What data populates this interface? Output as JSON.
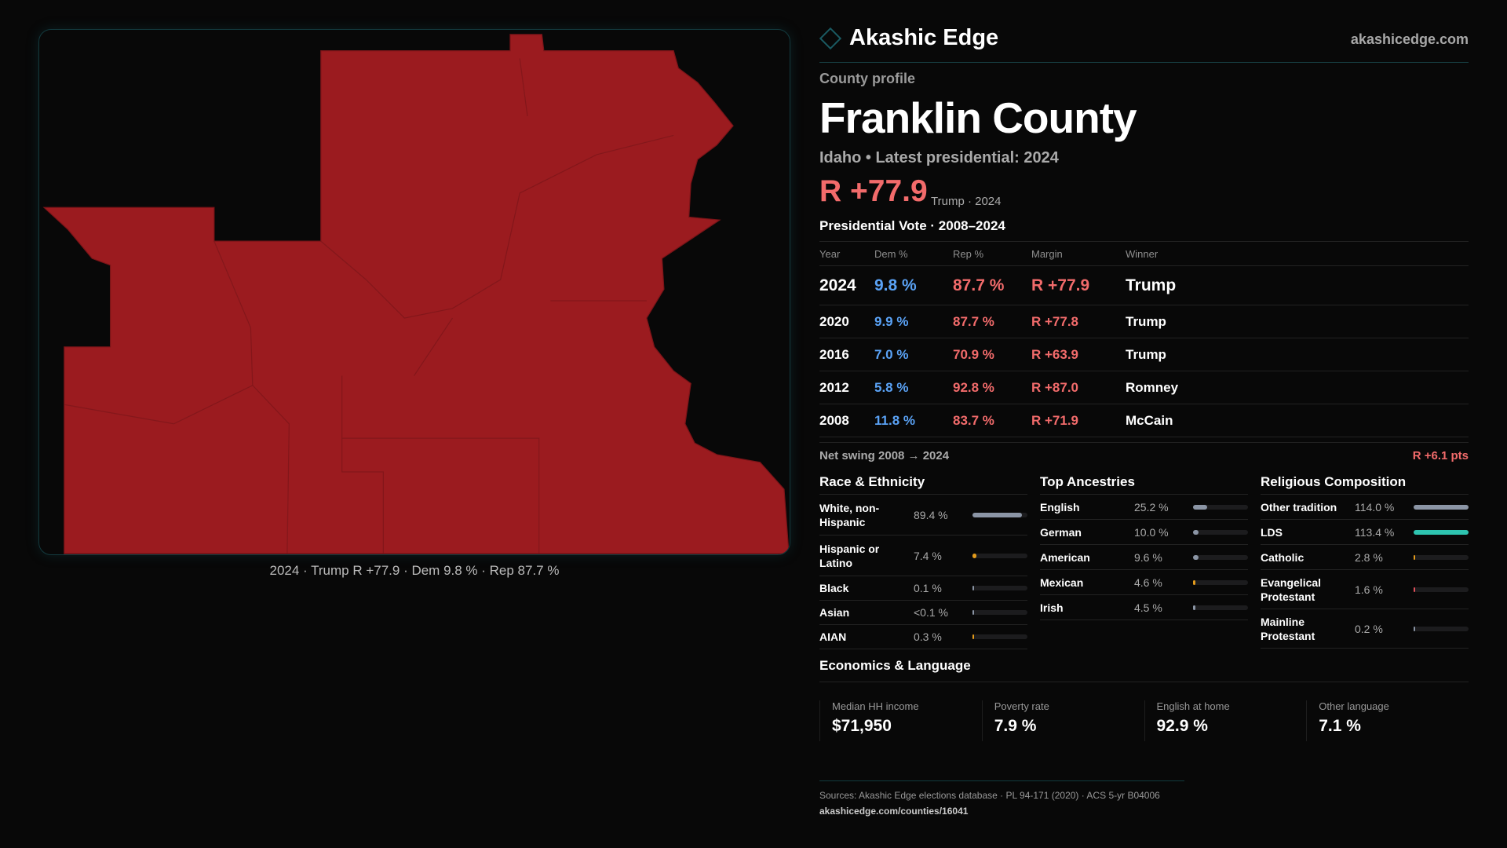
{
  "map": {
    "fill": "#9b1b1f",
    "caption": "2024 · Trump R +77.9 · Dem 9.8 % · Rep 87.7 %"
  },
  "header": {
    "brand": "Akashic Edge",
    "site": "akashicedge.com"
  },
  "profile": {
    "kicker": "County profile",
    "title": "Franklin County",
    "subtitle": "Idaho • Latest presidential: 2024",
    "margin": "R +77.9",
    "margin_sub": "Trump · 2024"
  },
  "votes": {
    "title": "Presidential Vote · 2008–2024",
    "headers": [
      "Year",
      "Dem %",
      "Rep %",
      "Margin",
      "Winner"
    ],
    "rows": [
      [
        "2024",
        "9.8 %",
        "87.7 %",
        "R +77.9",
        "Trump"
      ],
      [
        "2020",
        "9.9 %",
        "87.7 %",
        "R +77.8",
        "Trump"
      ],
      [
        "2016",
        "7.0 %",
        "70.9 %",
        "R +63.9",
        "Trump"
      ],
      [
        "2012",
        "5.8 %",
        "92.8 %",
        "R +87.0",
        "Romney"
      ],
      [
        "2008",
        "11.8 %",
        "83.7 %",
        "R +71.9",
        "McCain"
      ]
    ],
    "swing_label": "Net swing 2008 → 2024",
    "swing_value": "R +6.1 pts"
  },
  "race": {
    "title": "Race & Ethnicity",
    "items": [
      {
        "label": "White, non-Hispanic",
        "value": "89.4 %",
        "pct": 89.4,
        "color": "#8b95a5"
      },
      {
        "label": "Hispanic or Latino",
        "value": "7.4 %",
        "pct": 7.4,
        "color": "#e39b1c"
      },
      {
        "label": "Black",
        "value": "0.1 %",
        "pct": 0.1,
        "color": "#8b95a5"
      },
      {
        "label": "Asian",
        "value": "<0.1 %",
        "pct": 0,
        "color": "#8b95a5"
      },
      {
        "label": "AIAN",
        "value": "0.3 %",
        "pct": 0.3,
        "color": "#e39b1c"
      }
    ]
  },
  "ancestry": {
    "title": "Top Ancestries",
    "items": [
      {
        "label": "English",
        "value": "25.2 %",
        "pct": 25.2,
        "color": "#8b95a5"
      },
      {
        "label": "German",
        "value": "10.0 %",
        "pct": 10,
        "color": "#8b95a5"
      },
      {
        "label": "American",
        "value": "9.6 %",
        "pct": 9.6,
        "color": "#8b95a5"
      },
      {
        "label": "Mexican",
        "value": "4.6 %",
        "pct": 4.6,
        "color": "#e39b1c"
      },
      {
        "label": "Irish",
        "value": "4.5 %",
        "pct": 4.5,
        "color": "#8b95a5"
      }
    ]
  },
  "religion": {
    "title": "Religious Composition",
    "items": [
      {
        "label": "Other tradition",
        "value": "114.0 %",
        "pct": 100,
        "color": "#8b95a5"
      },
      {
        "label": "LDS",
        "value": "113.4 %",
        "pct": 100,
        "color": "#2ec4b0"
      },
      {
        "label": "Catholic",
        "value": "2.8 %",
        "pct": 2.8,
        "color": "#e39b1c"
      },
      {
        "label": "Evangelical Protestant",
        "value": "1.6 %",
        "pct": 1.6,
        "color": "#e0505a"
      },
      {
        "label": "Mainline Protestant",
        "value": "0.2 %",
        "pct": 0.2,
        "color": "#8b95a5"
      }
    ]
  },
  "economics": {
    "title": "Economics & Language",
    "stats": [
      {
        "label": "Median HH income",
        "value": "$71,950"
      },
      {
        "label": "Poverty rate",
        "value": "7.9 %"
      },
      {
        "label": "English at home",
        "value": "92.9 %"
      },
      {
        "label": "Other language",
        "value": "7.1 %"
      }
    ]
  },
  "footer": {
    "sources": "Sources: Akashic Edge elections database · PL 94-171 (2020) · ACS 5-yr B04006",
    "link": "akashicedge.com/counties/16041"
  }
}
